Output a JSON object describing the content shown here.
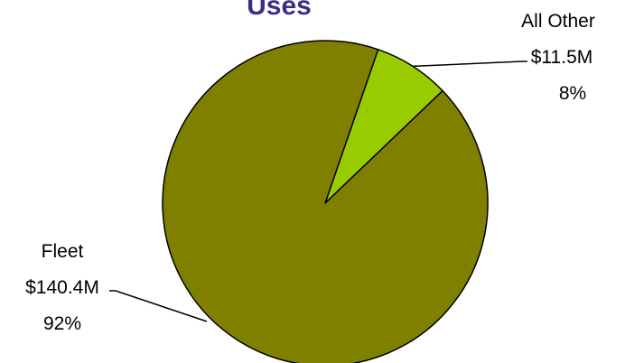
{
  "chart_data": {
    "type": "pie",
    "title": "Uses",
    "slices": [
      {
        "name": "All Other",
        "amount_label": "$11.5M",
        "percent_label": "8%",
        "value": 11.5,
        "percent": 8,
        "color": "#99cc00"
      },
      {
        "name": "Fleet",
        "amount_label": "$140.4M",
        "percent_label": "92%",
        "value": 140.4,
        "percent": 92,
        "color": "#808000"
      }
    ],
    "title_color": "#3b2e86",
    "outline_color": "#000000",
    "legend": "none"
  }
}
